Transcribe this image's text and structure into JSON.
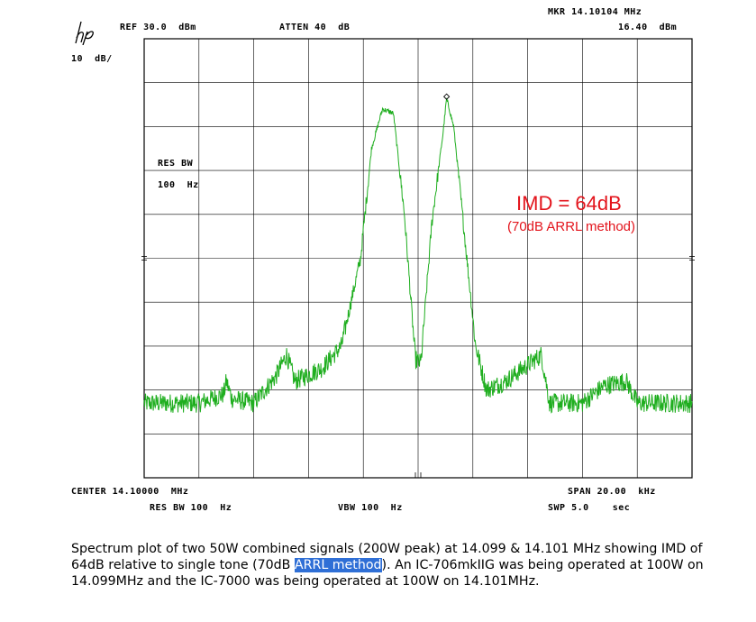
{
  "header": {
    "logo": "hp",
    "ref_level": "REF 30.0  dBm",
    "attenuation": "ATTEN 40  dB",
    "marker_freq": "MKR 14.10104 MHz",
    "marker_level": "16.40  dBm",
    "scale": "10  dB/"
  },
  "side": {
    "res_bw_label": "RES BW",
    "res_bw_value": "100  Hz"
  },
  "footer": {
    "center": "CENTER 14.10000  MHz",
    "span": "SPAN 20.00  kHz",
    "res_bw": "RES BW 100  Hz",
    "vbw": "VBW 100  Hz",
    "sweep": "SWP 5.0    sec"
  },
  "annotation": {
    "imd": "IMD = 64dB",
    "arrl": "(70dB ARRL method)"
  },
  "caption": {
    "part1": "Spectrum plot of two 50W combined signals (200W peak) at 14.099 & 14.101 MHz showing IMD of 64dB relative to single tone (70dB ",
    "highlight": "ARRL method",
    "part2": ").  An IC-706mkIIG was being operated at 100W on 14.099MHz and the IC-7000 was being operated at 100W on 14.101MHz."
  },
  "colors": {
    "trace": "#1fae1f",
    "grid": "#000000",
    "annotation": "#e3141c",
    "highlight": "#2f6fd6"
  },
  "chart_data": {
    "type": "line",
    "title": "",
    "xlabel": "",
    "ylabel": "",
    "x_unit": "MHz",
    "y_unit": "dBm",
    "xlim": [
      14.09,
      14.11
    ],
    "ylim": [
      -70,
      30
    ],
    "grid": true,
    "legend": "none",
    "marker": {
      "x": 14.10104,
      "y": 16.4
    },
    "noise_floor_dbm": -54,
    "series": [
      {
        "values": [
          [
            14.09,
            -53
          ],
          [
            14.092,
            -53
          ],
          [
            14.0929,
            -51
          ],
          [
            14.093,
            -48
          ],
          [
            14.0932,
            -52
          ],
          [
            14.094,
            -53
          ],
          [
            14.0948,
            -47
          ],
          [
            14.0952,
            -42
          ],
          [
            14.0955,
            -48
          ],
          [
            14.0965,
            -45
          ],
          [
            14.0972,
            -40
          ],
          [
            14.0979,
            -20
          ],
          [
            14.0983,
            5
          ],
          [
            14.0987,
            14
          ],
          [
            14.0991,
            13
          ],
          [
            14.0995,
            -10
          ],
          [
            14.0999,
            -43
          ],
          [
            14.1001,
            -44
          ],
          [
            14.1005,
            -12
          ],
          [
            14.1009,
            8
          ],
          [
            14.10104,
            16.4
          ],
          [
            14.1013,
            10
          ],
          [
            14.1017,
            -15
          ],
          [
            14.1021,
            -40
          ],
          [
            14.1025,
            -50
          ],
          [
            14.1032,
            -48
          ],
          [
            14.1045,
            -42
          ],
          [
            14.1048,
            -53
          ],
          [
            14.106,
            -53
          ],
          [
            14.1068,
            -49
          ],
          [
            14.1076,
            -48
          ],
          [
            14.108,
            -53
          ],
          [
            14.11,
            -53
          ]
        ]
      }
    ]
  }
}
